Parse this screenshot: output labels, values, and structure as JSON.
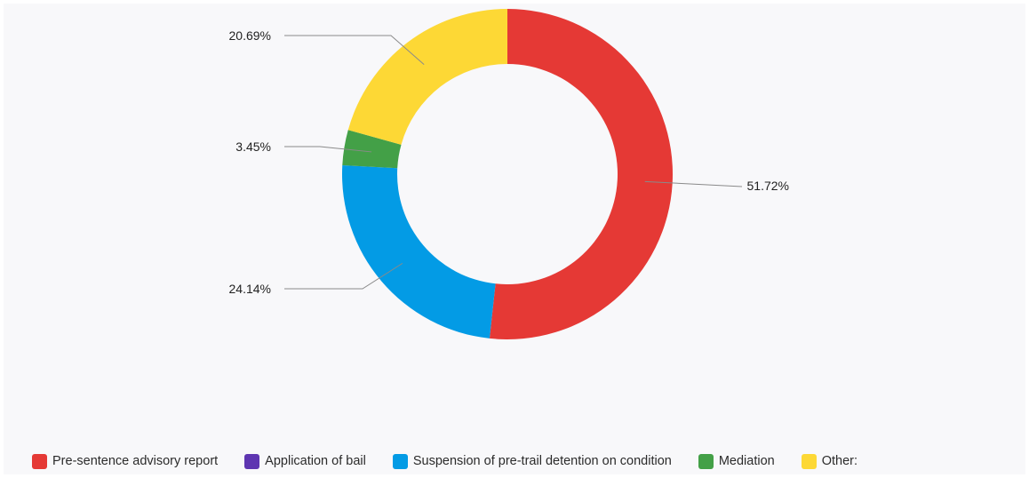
{
  "chart_data": {
    "type": "pie",
    "donut": true,
    "title": "",
    "slices": [
      {
        "name": "Pre-sentence advisory report",
        "value": 51.72,
        "label": "51.72%",
        "color": "#e53935"
      },
      {
        "name": "Application of bail",
        "value": 0,
        "label": "",
        "color": "#5e35b1"
      },
      {
        "name": "Suspension of pre-trail detention on condition",
        "value": 24.14,
        "label": "24.14%",
        "color": "#039be5"
      },
      {
        "name": "Mediation",
        "value": 3.45,
        "label": "3.45%",
        "color": "#43a047"
      },
      {
        "name": "Other:",
        "value": 20.69,
        "label": "20.69%",
        "color": "#fdd835"
      }
    ],
    "start_angle": "top",
    "direction": "clockwise",
    "legend_position": "bottom"
  },
  "legend": {
    "items": [
      {
        "label": "Pre-sentence advisory report",
        "color": "#e53935"
      },
      {
        "label": "Application of bail",
        "color": "#5e35b1"
      },
      {
        "label": "Suspension of pre-trail detention on condition",
        "color": "#039be5"
      },
      {
        "label": "Mediation",
        "color": "#43a047"
      },
      {
        "label": "Other:",
        "color": "#fdd835"
      }
    ]
  }
}
